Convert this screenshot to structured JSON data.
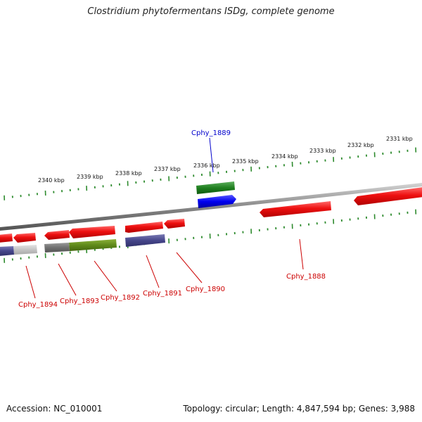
{
  "title": "Clostridium phytofermentans ISDg, complete genome",
  "accession_text": "Accession: NC_010001",
  "summary_text": "Topology: circular; Length: 4,847,594 bp; Genes: 3,988",
  "colors": {
    "backbone": "#8a8a8a",
    "tick": "#2e8b2e",
    "gene_red": "#e8101a",
    "label_red": "#cc0000",
    "label_blue": "#0000cc"
  },
  "scale_labels": [
    "2340 kbp",
    "2339 kbp",
    "2338 kbp",
    "2337 kbp",
    "2336 kbp",
    "2335 kbp",
    "2334 kbp",
    "2333 kbp",
    "2332 kbp",
    "2331 kbp"
  ],
  "gene_labels": [
    {
      "text": "Cphy_1889",
      "color": "blue"
    },
    {
      "text": "Cphy_1888",
      "color": "red"
    },
    {
      "text": "Cphy_1890",
      "color": "red"
    },
    {
      "text": "Cphy_1891",
      "color": "red"
    },
    {
      "text": "Cphy_1892",
      "color": "red"
    },
    {
      "text": "Cphy_1893",
      "color": "red"
    },
    {
      "text": "Cphy_1894",
      "color": "red"
    }
  ]
}
